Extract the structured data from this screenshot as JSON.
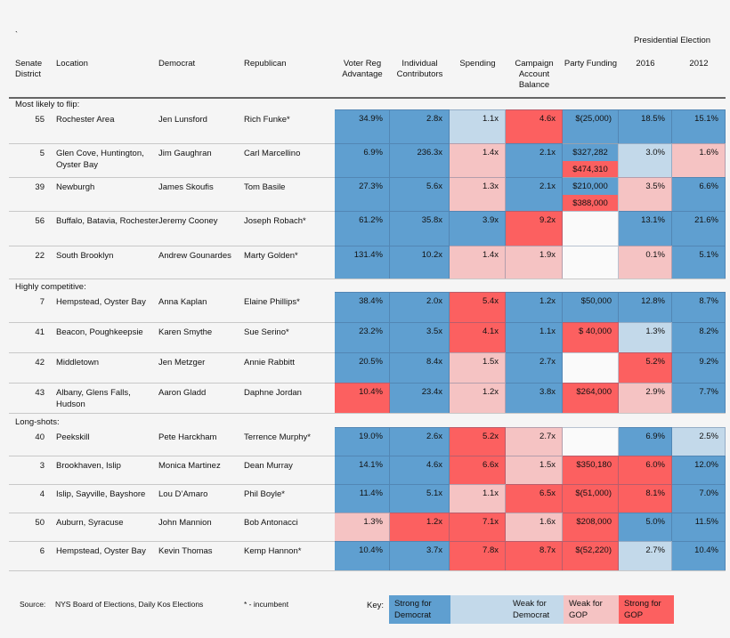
{
  "mark": "`",
  "header": {
    "group": "Presidential Election",
    "columns": [
      "Senate District",
      "Location",
      "Democrat",
      "Republican",
      "Voter Reg Advantage",
      "Individual Contributors",
      "Spending",
      "Campaign Account Balance",
      "Party Funding",
      "2016",
      "2012"
    ]
  },
  "colors": {
    "D": "#5f9fd0",
    "d": "#c3d9ea",
    "r": "#f5c3c3",
    "R": "#fc6060"
  },
  "sections": [
    {
      "title": "Most likely to flip:",
      "rows": [
        {
          "district": "55",
          "location": "Rochester Area",
          "dem": "Jen Lunsford",
          "rep": "Rich Funke*",
          "cells": [
            [
              "34.9%",
              "D"
            ],
            [
              "2.8x",
              "D"
            ],
            [
              "1.1x",
              "d"
            ],
            [
              "4.6x",
              "R"
            ],
            [
              "$(25,000)",
              "D"
            ],
            [
              "18.5%",
              "D"
            ],
            [
              "15.1%",
              "D"
            ]
          ]
        },
        {
          "district": "5",
          "location": "Glen Cove, Huntington, Oyster Bay",
          "dem": "Jim Gaughran",
          "rep": "Carl Marcellino",
          "cells": [
            [
              "6.9%",
              "D"
            ],
            [
              "236.3x",
              "D"
            ],
            [
              "1.4x",
              "r"
            ],
            [
              "2.1x",
              "D"
            ],
            [
              [
                "$327,282",
                "D"
              ],
              [
                "$474,310",
                "R"
              ]
            ],
            [
              "3.0%",
              "d"
            ],
            [
              "1.6%",
              "r"
            ]
          ]
        },
        {
          "district": "39",
          "location": "Newburgh",
          "dem": "James Skoufis",
          "rep": "Tom Basile",
          "cells": [
            [
              "27.3%",
              "D"
            ],
            [
              "5.6x",
              "D"
            ],
            [
              "1.3x",
              "r"
            ],
            [
              "2.1x",
              "D"
            ],
            [
              [
                "$210,000",
                "D"
              ],
              [
                "$388,000",
                "R"
              ]
            ],
            [
              "3.5%",
              "r"
            ],
            [
              "6.6%",
              "D"
            ]
          ]
        },
        {
          "district": "56",
          "location": "Buffalo, Batavia, Rochester",
          "dem": "Jeremy Cooney",
          "rep": "Joseph Robach*",
          "cells": [
            [
              "61.2%",
              "D"
            ],
            [
              "35.8x",
              "D"
            ],
            [
              "3.9x",
              "D"
            ],
            [
              "9.2x",
              "R"
            ],
            [
              "",
              "E"
            ],
            [
              "13.1%",
              "D"
            ],
            [
              "21.6%",
              "D"
            ]
          ]
        },
        {
          "district": "22",
          "location": "South Brooklyn",
          "dem": "Andrew Gounardes",
          "rep": "Marty Golden*",
          "cells": [
            [
              "131.4%",
              "D"
            ],
            [
              "10.2x",
              "D"
            ],
            [
              "1.4x",
              "r"
            ],
            [
              "1.9x",
              "r"
            ],
            [
              "",
              "E"
            ],
            [
              "0.1%",
              "r"
            ],
            [
              "5.1%",
              "D"
            ]
          ]
        }
      ]
    },
    {
      "title": "Highly competitive:",
      "rows": [
        {
          "district": "7",
          "location": "Hempstead, Oyster Bay",
          "dem": "Anna Kaplan",
          "rep": "Elaine Phillips*",
          "cells": [
            [
              "38.4%",
              "D"
            ],
            [
              "2.0x",
              "D"
            ],
            [
              "5.4x",
              "R"
            ],
            [
              "1.2x",
              "D"
            ],
            [
              "$50,000",
              "D"
            ],
            [
              "12.8%",
              "D"
            ],
            [
              "8.7%",
              "D"
            ]
          ]
        },
        {
          "district": "41",
          "location": "Beacon, Poughkeepsie",
          "dem": "Karen Smythe",
          "rep": "Sue Serino*",
          "cells": [
            [
              "23.2%",
              "D"
            ],
            [
              "3.5x",
              "D"
            ],
            [
              "4.1x",
              "R"
            ],
            [
              "1.1x",
              "D"
            ],
            [
              "$ 40,000",
              "R"
            ],
            [
              "1.3%",
              "d"
            ],
            [
              "8.2%",
              "D"
            ]
          ]
        },
        {
          "district": "42",
          "location": "Middletown",
          "dem": "Jen Metzger",
          "rep": "Annie Rabbitt",
          "cells": [
            [
              "20.5%",
              "D"
            ],
            [
              "8.4x",
              "D"
            ],
            [
              "1.5x",
              "r"
            ],
            [
              "2.7x",
              "D"
            ],
            [
              "",
              "E"
            ],
            [
              "5.2%",
              "R"
            ],
            [
              "9.2%",
              "D"
            ]
          ]
        },
        {
          "district": "43",
          "location": "Albany, Glens Falls, Hudson",
          "dem": "Aaron Gladd",
          "rep": "Daphne Jordan",
          "cells": [
            [
              "10.4%",
              "R"
            ],
            [
              "23.4x",
              "D"
            ],
            [
              "1.2x",
              "r"
            ],
            [
              "3.8x",
              "D"
            ],
            [
              "$264,000",
              "R"
            ],
            [
              "2.9%",
              "r"
            ],
            [
              "7.7%",
              "D"
            ]
          ]
        }
      ]
    },
    {
      "title": "Long-shots:",
      "rows": [
        {
          "district": "40",
          "location": "Peekskill",
          "dem": "Pete Harckham",
          "rep": "Terrence Murphy*",
          "cells": [
            [
              "19.0%",
              "D"
            ],
            [
              "2.6x",
              "D"
            ],
            [
              "5.2x",
              "R"
            ],
            [
              "2.7x",
              "r"
            ],
            [
              "",
              "E"
            ],
            [
              "6.9%",
              "D"
            ],
            [
              "2.5%",
              "d"
            ]
          ]
        },
        {
          "district": "3",
          "location": "Brookhaven, Islip",
          "dem": "Monica Martinez",
          "rep": "Dean Murray",
          "cells": [
            [
              "14.1%",
              "D"
            ],
            [
              "4.6x",
              "D"
            ],
            [
              "6.6x",
              "R"
            ],
            [
              "1.5x",
              "r"
            ],
            [
              "$350,180",
              "R"
            ],
            [
              "6.0%",
              "R"
            ],
            [
              "12.0%",
              "D"
            ]
          ]
        },
        {
          "district": "4",
          "location": "Islip, Sayville, Bayshore",
          "dem": "Lou D’Amaro",
          "rep": "Phil Boyle*",
          "cells": [
            [
              "11.4%",
              "D"
            ],
            [
              "5.1x",
              "D"
            ],
            [
              "1.1x",
              "r"
            ],
            [
              "6.5x",
              "R"
            ],
            [
              "$(51,000)",
              "R"
            ],
            [
              "8.1%",
              "R"
            ],
            [
              "7.0%",
              "D"
            ]
          ]
        },
        {
          "district": "50",
          "location": "Auburn, Syracuse",
          "dem": "John Mannion",
          "rep": "Bob Antonacci",
          "cells": [
            [
              "1.3%",
              "r"
            ],
            [
              "1.2x",
              "R"
            ],
            [
              "7.1x",
              "R"
            ],
            [
              "1.6x",
              "r"
            ],
            [
              "$208,000",
              "R"
            ],
            [
              "5.0%",
              "D"
            ],
            [
              "11.5%",
              "D"
            ]
          ]
        },
        {
          "district": "6",
          "location": "Hempstead, Oyster Bay",
          "dem": "Kevin Thomas",
          "rep": "Kemp Hannon*",
          "cells": [
            [
              "10.4%",
              "D"
            ],
            [
              "3.7x",
              "D"
            ],
            [
              "7.8x",
              "R"
            ],
            [
              "8.7x",
              "R"
            ],
            [
              "$(52,220)",
              "R"
            ],
            [
              "2.7%",
              "d"
            ],
            [
              "10.4%",
              "D"
            ]
          ]
        }
      ]
    }
  ],
  "footer": {
    "source_label": "Source:",
    "source": "NYS Board of Elections, Daily Kos Elections",
    "incumbent_note": "* - incumbent",
    "key_label": "Key:",
    "key": [
      [
        "Strong for Democrat",
        "D"
      ],
      [
        "",
        "d"
      ],
      [
        "Weak for Democrat",
        "d"
      ],
      [
        "Weak for GOP",
        "r"
      ],
      [
        "Strong for GOP",
        "R"
      ]
    ]
  }
}
